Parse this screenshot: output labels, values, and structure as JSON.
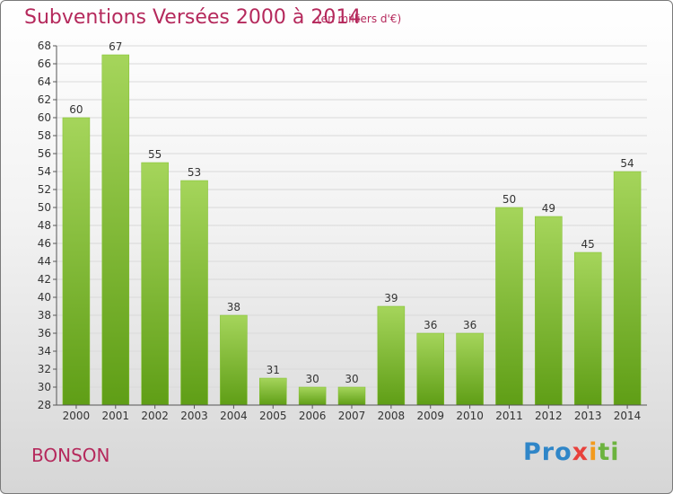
{
  "title": "Subventions Versées 2000 à 2014",
  "unit_note": "(en milliers d'€)",
  "commune": "BONSON",
  "logo": {
    "parts": [
      "Pro",
      "x",
      "i",
      "ti"
    ]
  },
  "colors": {
    "title": "#b5295c",
    "bar_top": "#a5d55b",
    "bar_bottom": "#5f9e16",
    "grid": "#d9d9d9"
  },
  "chart_data": {
    "type": "bar",
    "categories": [
      "2000",
      "2001",
      "2002",
      "2003",
      "2004",
      "2005",
      "2006",
      "2007",
      "2008",
      "2009",
      "2010",
      "2011",
      "2012",
      "2013",
      "2014"
    ],
    "values": [
      60,
      67,
      55,
      53,
      38,
      31,
      30,
      30,
      39,
      36,
      36,
      50,
      49,
      45,
      54
    ],
    "ylim": [
      28,
      68
    ],
    "yticks": [
      28,
      30,
      32,
      34,
      36,
      38,
      40,
      42,
      44,
      46,
      48,
      50,
      52,
      54,
      56,
      58,
      60,
      62,
      64,
      66,
      68
    ],
    "grid": true,
    "data_labels": true
  }
}
